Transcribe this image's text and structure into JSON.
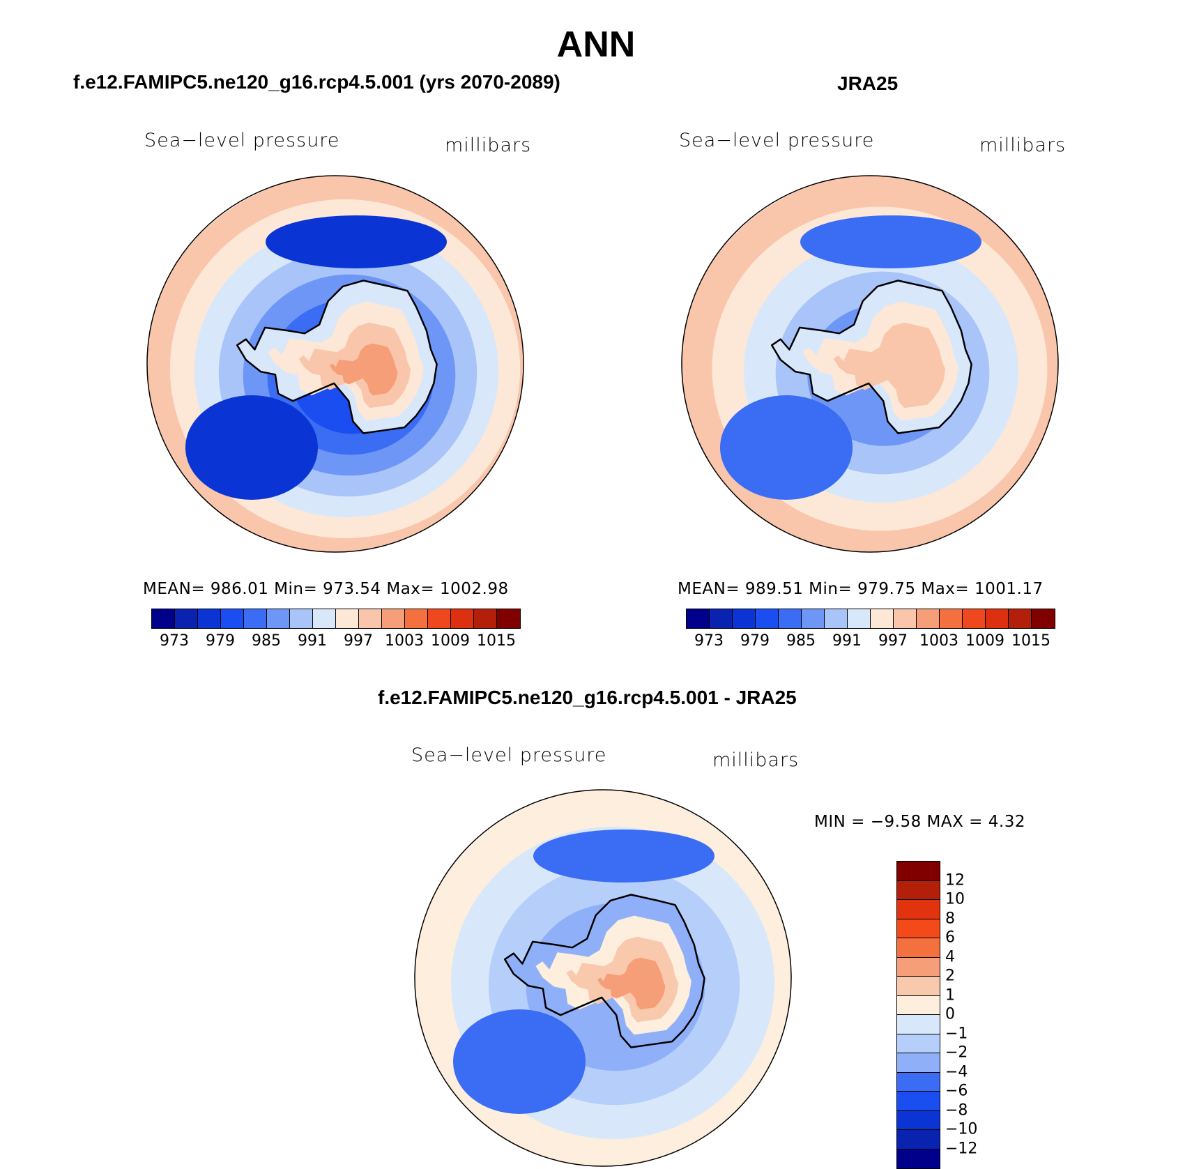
{
  "title": "ANN",
  "panels": [
    {
      "id": "model",
      "header": "f.e12.FAMIPC5.ne120_g16.rcp4.5.001 (yrs 2070-2089)",
      "variable": "Sea−level pressure",
      "units": "millibars",
      "stats_text": "MEAN=  986.01    Min=  973.54    Max=  1002.98",
      "stats": {
        "mean": 986.01,
        "min": 973.54,
        "max": 1002.98
      }
    },
    {
      "id": "obs",
      "header": "JRA25",
      "variable": "Sea−level pressure",
      "units": "millibars",
      "stats_text": "MEAN=  989.51    Min=  979.75    Max=  1001.17",
      "stats": {
        "mean": 989.51,
        "min": 979.75,
        "max": 1001.17
      }
    },
    {
      "id": "diff",
      "header": "f.e12.FAMIPC5.ne120_g16.rcp4.5.001 - JRA25",
      "variable": "Sea−level pressure",
      "units": "millibars",
      "stats_text": "MIN =   −9.58  MAX =     4.32",
      "stats": {
        "min": -9.58,
        "max": 4.32
      }
    }
  ],
  "colorbar_abs": {
    "colors": [
      "#00008b",
      "#0a22b0",
      "#0a34d4",
      "#1a4ef0",
      "#3a6cf4",
      "#6e96f6",
      "#a8c4f8",
      "#d8e8fa",
      "#fde8d8",
      "#f9c6ac",
      "#f69e78",
      "#f4713f",
      "#f0481e",
      "#dc3010",
      "#b41f0a",
      "#800000"
    ],
    "labels": [
      "973",
      "979",
      "985",
      "991",
      "997",
      "1003",
      "1009",
      "1015"
    ]
  },
  "colorbar_diff": {
    "colors": [
      "#800000",
      "#b41f0a",
      "#e0330e",
      "#f44a1a",
      "#f4713f",
      "#f69e78",
      "#f9c9ae",
      "#fdeedd",
      "#d8e8fa",
      "#b6cefa",
      "#8fb0f8",
      "#3a6cf4",
      "#1a4ef0",
      "#0a34d4",
      "#0a22b0",
      "#00008b"
    ],
    "labels": [
      "12",
      "10",
      "8",
      "6",
      "4",
      "2",
      "1",
      "0",
      "−1",
      "−2",
      "−4",
      "−6",
      "−8",
      "−10",
      "−12"
    ]
  },
  "map_colors": {
    "model": {
      "rings": [
        "#f9c6ac",
        "#fde8d8",
        "#d8e8fa",
        "#a8c4f8",
        "#6e96f6",
        "#3a6cf4",
        "#1a4ef0"
      ],
      "ocean_low": "#0a34d4",
      "continent": [
        "#d8e8fa",
        "#fde8d8",
        "#f9c6ac",
        "#f69e78"
      ]
    },
    "obs": {
      "rings": [
        "#f9c6ac",
        "#fde8d8",
        "#d8e8fa",
        "#a8c4f8",
        "#6e96f6"
      ],
      "ocean_low": "#3a6cf4",
      "continent": [
        "#d8e8fa",
        "#fde8d8",
        "#f9c6ac"
      ]
    },
    "diff": {
      "rings": [
        "#fdeedd",
        "#d8e8fa",
        "#b6cefa",
        "#8fb0f8"
      ],
      "ocean_low": "#3a6cf4",
      "continent": [
        "#8fb0f8",
        "#fdeedd",
        "#f9c9ae",
        "#f69e78"
      ]
    }
  }
}
